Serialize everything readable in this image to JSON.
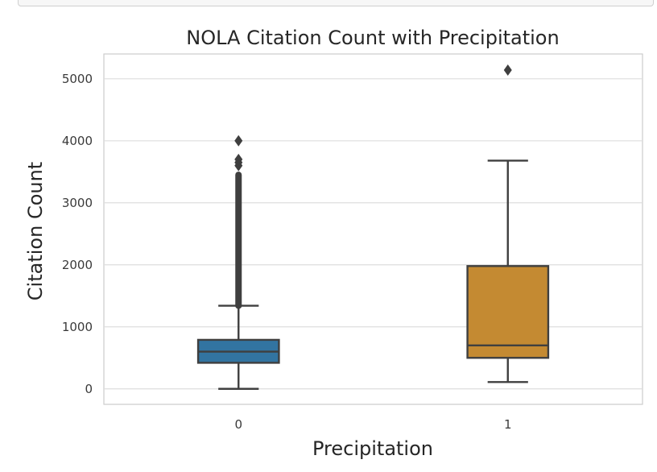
{
  "chart_data": {
    "type": "box",
    "title": "NOLA Citation Count with Precipitation",
    "xlabel": "Precipitation",
    "ylabel": "Citation Count",
    "categories": [
      "0",
      "1"
    ],
    "ylim": [
      -250,
      5400
    ],
    "yticks": [
      0,
      1000,
      2000,
      3000,
      4000,
      5000
    ],
    "grid": true,
    "boxes": [
      {
        "category": "0",
        "color": "#3274a1",
        "whisker_low": 0,
        "q1": 420,
        "median": 600,
        "q3": 790,
        "whisker_high": 1340,
        "outliers_range": [
          1340,
          3450
        ],
        "outliers": [
          3600,
          3650,
          3700,
          4000
        ]
      },
      {
        "category": "1",
        "color": "#c48a32",
        "whisker_low": 110,
        "q1": 500,
        "median": 700,
        "q3": 1980,
        "whisker_high": 3680,
        "outliers_range": null,
        "outliers": [
          5140
        ]
      }
    ]
  }
}
